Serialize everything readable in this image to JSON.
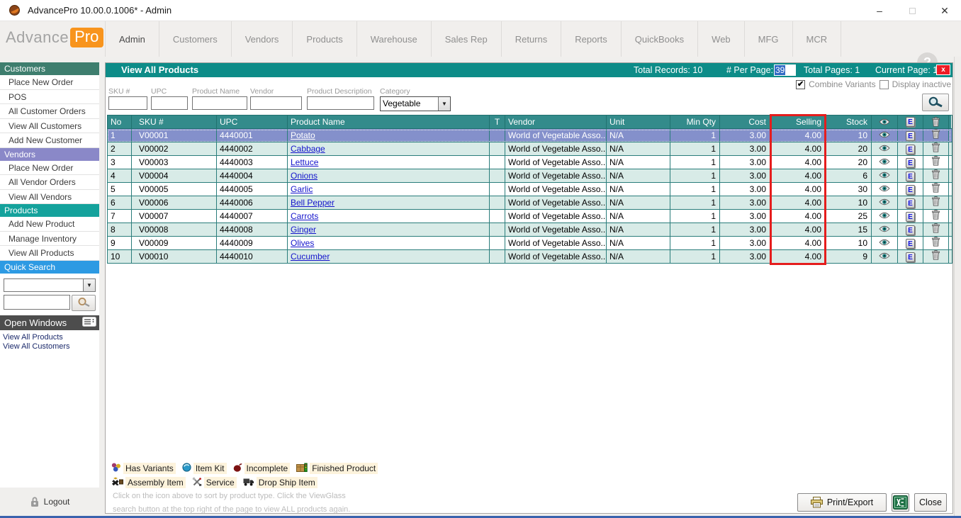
{
  "window": {
    "title": "AdvancePro 10.00.0.1006*  - Admin",
    "minimize": "–",
    "close": "✕"
  },
  "nav": {
    "logo_advance": "Advance",
    "logo_pro": "Pro",
    "items": [
      "Admin",
      "Customers",
      "Vendors",
      "Products",
      "Warehouse",
      "Sales Rep",
      "Returns",
      "Reports",
      "QuickBooks",
      "Web",
      "MFG",
      "MCR"
    ],
    "active_item": "Admin",
    "help": "?"
  },
  "sidebar": {
    "sections": [
      {
        "title": "Customers",
        "color": "#3e7e6e",
        "items": [
          "Place New Order",
          "POS",
          "All Customer Orders",
          "View All Customers",
          "Add New Customer"
        ]
      },
      {
        "title": "Vendors",
        "color": "#8a88c8",
        "items": [
          "Place New Order",
          "All Vendor Orders",
          "View All Vendors"
        ]
      },
      {
        "title": "Products",
        "color": "#14a29c",
        "items": [
          "Add New Product",
          "Manage Inventory",
          "View All Products"
        ]
      }
    ],
    "quick_search": {
      "title": "Quick Search",
      "color": "#2d9ae3",
      "combo_value": "",
      "input_value": ""
    },
    "open_windows": {
      "title": "Open Windows",
      "items": [
        "View All Products",
        "View All Customers"
      ]
    },
    "logout": "Logout"
  },
  "panel": {
    "title": "View All Products",
    "total_records_label": "Total Records:  10",
    "per_page_label": "# Per Page:",
    "per_page_value": "39",
    "total_pages_label": "Total Pages:  1",
    "current_page_label": "Current Page: 1",
    "close_x": "x",
    "combine_variants_label": "Combine Variants",
    "combine_variants_checked": "✔",
    "display_inactive_label": "Display inactive"
  },
  "filters": {
    "fields": [
      {
        "label": "SKU #",
        "value": ""
      },
      {
        "label": "UPC",
        "value": ""
      },
      {
        "label": "Product Name",
        "value": ""
      },
      {
        "label": "Vendor",
        "value": ""
      },
      {
        "label": "Product Description",
        "value": ""
      }
    ],
    "category_label": "Category",
    "category_value": "Vegetable"
  },
  "table": {
    "columns": [
      "No",
      "SKU #",
      "UPC",
      "Product Name",
      "T",
      "Vendor",
      "Unit",
      "Min Qty",
      "Cost",
      "Selling",
      "Stock"
    ],
    "rows": [
      {
        "no": "1",
        "sku": "V00001",
        "upc": "4440001",
        "name": "Potato",
        "t": "",
        "vendor": "World of Vegetable Asso...",
        "unit": "N/A",
        "min_qty": "1",
        "cost": "3.00",
        "selling": "4.00",
        "stock": "10",
        "selected": true
      },
      {
        "no": "2",
        "sku": "V00002",
        "upc": "4440002",
        "name": "Cabbage",
        "t": "",
        "vendor": "World of Vegetable Asso...",
        "unit": "N/A",
        "min_qty": "1",
        "cost": "3.00",
        "selling": "4.00",
        "stock": "20",
        "selected": false
      },
      {
        "no": "3",
        "sku": "V00003",
        "upc": "4440003",
        "name": "Lettuce",
        "t": "",
        "vendor": "World of Vegetable Asso...",
        "unit": "N/A",
        "min_qty": "1",
        "cost": "3.00",
        "selling": "4.00",
        "stock": "20",
        "selected": false
      },
      {
        "no": "4",
        "sku": "V00004",
        "upc": "4440004",
        "name": "Onions",
        "t": "",
        "vendor": "World of Vegetable Asso...",
        "unit": "N/A",
        "min_qty": "1",
        "cost": "3.00",
        "selling": "4.00",
        "stock": "6",
        "selected": false
      },
      {
        "no": "5",
        "sku": "V00005",
        "upc": "4440005",
        "name": "Garlic",
        "t": "",
        "vendor": "World of Vegetable Asso...",
        "unit": "N/A",
        "min_qty": "1",
        "cost": "3.00",
        "selling": "4.00",
        "stock": "30",
        "selected": false
      },
      {
        "no": "6",
        "sku": "V00006",
        "upc": "4440006",
        "name": "Bell Pepper",
        "t": "",
        "vendor": "World of Vegetable Asso...",
        "unit": "N/A",
        "min_qty": "1",
        "cost": "3.00",
        "selling": "4.00",
        "stock": "10",
        "selected": false
      },
      {
        "no": "7",
        "sku": "V00007",
        "upc": "4440007",
        "name": "Carrots",
        "t": "",
        "vendor": "World of Vegetable Asso...",
        "unit": "N/A",
        "min_qty": "1",
        "cost": "3.00",
        "selling": "4.00",
        "stock": "25",
        "selected": false
      },
      {
        "no": "8",
        "sku": "V00008",
        "upc": "4440008",
        "name": "Ginger",
        "t": "",
        "vendor": "World of Vegetable Asso...",
        "unit": "N/A",
        "min_qty": "1",
        "cost": "3.00",
        "selling": "4.00",
        "stock": "15",
        "selected": false
      },
      {
        "no": "9",
        "sku": "V00009",
        "upc": "4440009",
        "name": "Olives",
        "t": "",
        "vendor": "World of Vegetable Asso...",
        "unit": "N/A",
        "min_qty": "1",
        "cost": "3.00",
        "selling": "4.00",
        "stock": "10",
        "selected": false
      },
      {
        "no": "10",
        "sku": "V00010",
        "upc": "4440010",
        "name": "Cucumber",
        "t": "",
        "vendor": "World of Vegetable Asso...",
        "unit": "N/A",
        "min_qty": "1",
        "cost": "3.00",
        "selling": "4.00",
        "stock": "9",
        "selected": false
      }
    ],
    "row_icon_columns": [
      "view-icon",
      "edit-icon",
      "delete-icon"
    ]
  },
  "highlight": {
    "column": "Selling",
    "color": "#e51d1d"
  },
  "legend": {
    "row1": [
      {
        "icon": "has-variants-icon",
        "label": "Has Variants"
      },
      {
        "icon": "item-kit-icon",
        "label": "Item Kit"
      },
      {
        "icon": "incomplete-icon",
        "label": "Incomplete"
      },
      {
        "icon": "finished-product-icon",
        "label": "Finished Product"
      }
    ],
    "row2": [
      {
        "icon": "assembly-item-icon",
        "label": "Assembly Item"
      },
      {
        "icon": "service-icon",
        "label": "Service"
      },
      {
        "icon": "drop-ship-icon",
        "label": "Drop Ship Item"
      }
    ],
    "help_line1": "Click on the icon above to sort by product type. Click the ViewGlass",
    "help_line2": "search button at the top right of the page to view ALL products again."
  },
  "footer": {
    "print_export": "Print/Export",
    "close": "Close"
  }
}
